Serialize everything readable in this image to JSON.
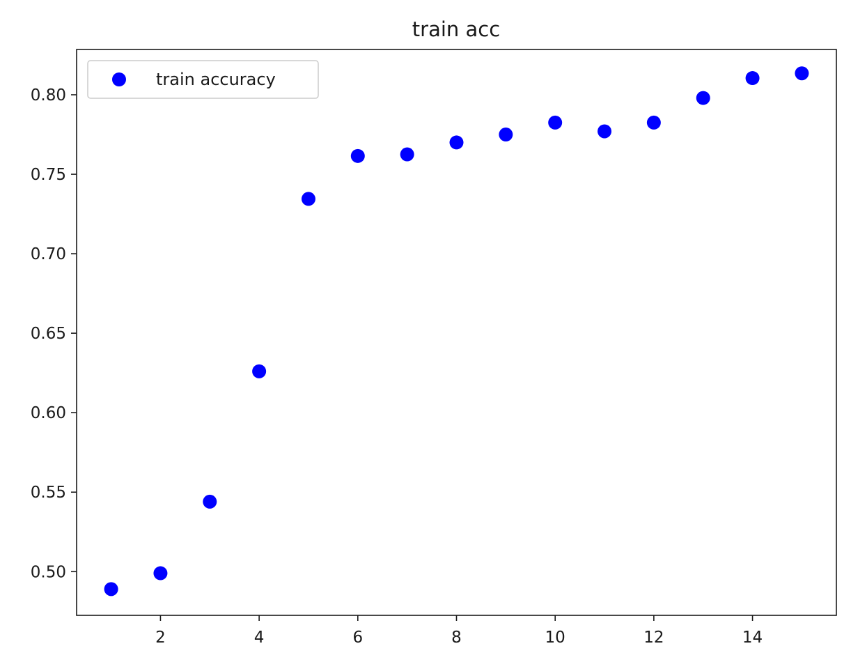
{
  "chart_data": {
    "type": "scatter",
    "title": "train acc",
    "xlabel": "",
    "ylabel": "",
    "xlim": [
      0.3,
      15.7
    ],
    "ylim": [
      0.4725,
      0.8285
    ],
    "xticks": [
      2,
      4,
      6,
      8,
      10,
      12,
      14
    ],
    "yticks": [
      0.5,
      0.55,
      0.6,
      0.65,
      0.7,
      0.75,
      0.8
    ],
    "ytick_labels": [
      "0.50",
      "0.55",
      "0.60",
      "0.65",
      "0.70",
      "0.75",
      "0.80"
    ],
    "xtick_labels": [
      "2",
      "4",
      "6",
      "8",
      "10",
      "12",
      "14"
    ],
    "grid": false,
    "legend_position": "top-left",
    "series": [
      {
        "name": "train accuracy",
        "color": "#0000ff",
        "marker": "circle",
        "x": [
          1,
          2,
          3,
          4,
          5,
          6,
          7,
          8,
          9,
          10,
          11,
          12,
          13,
          14,
          15
        ],
        "y": [
          0.489,
          0.499,
          0.544,
          0.626,
          0.7345,
          0.7615,
          0.7625,
          0.77,
          0.775,
          0.7825,
          0.777,
          0.7825,
          0.798,
          0.8105,
          0.8135
        ]
      }
    ]
  }
}
